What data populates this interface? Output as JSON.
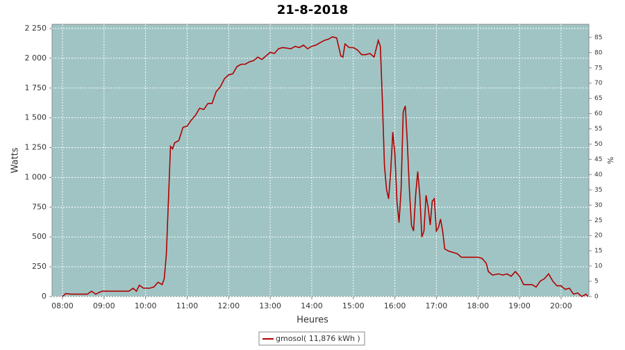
{
  "chart_data": {
    "type": "line",
    "title": "21-8-2018",
    "x_label": "Heures",
    "y_label": "Watts",
    "y2_label": "%",
    "xlim": [
      7.75,
      20.67
    ],
    "ylim": [
      0,
      2285
    ],
    "y2lim": [
      0,
      89.3
    ],
    "grid": true,
    "background": "#a0c4c4",
    "legend": "bottom",
    "xticks": [
      {
        "value": 8,
        "label": "08:00"
      },
      {
        "value": 9,
        "label": "09:00"
      },
      {
        "value": 10,
        "label": "10:00"
      },
      {
        "value": 11,
        "label": "11:00"
      },
      {
        "value": 12,
        "label": "12:00"
      },
      {
        "value": 13,
        "label": "13:00"
      },
      {
        "value": 14,
        "label": "14:00"
      },
      {
        "value": 15,
        "label": "15:00"
      },
      {
        "value": 16,
        "label": "16:00"
      },
      {
        "value": 17,
        "label": "17:00"
      },
      {
        "value": 18,
        "label": "18:00"
      },
      {
        "value": 19,
        "label": "19:00"
      },
      {
        "value": 20,
        "label": "20:00"
      }
    ],
    "yticks": [
      0,
      250,
      500,
      750,
      {
        "value": 1000,
        "label": "1 000"
      },
      {
        "value": 1250,
        "label": "1 250"
      },
      {
        "value": 1500,
        "label": "1 500"
      },
      {
        "value": 1750,
        "label": "1 750"
      },
      {
        "value": 2000,
        "label": "2 000"
      },
      {
        "value": 2250,
        "label": "2 250"
      }
    ],
    "y2ticks": [
      0,
      5,
      10,
      15,
      20,
      25,
      30,
      35,
      40,
      45,
      50,
      55,
      60,
      65,
      70,
      75,
      80,
      85
    ],
    "x": [
      8.0,
      8.08,
      8.2,
      8.4,
      8.6,
      8.7,
      8.8,
      8.95,
      9.1,
      9.3,
      9.5,
      9.6,
      9.7,
      9.78,
      9.85,
      9.95,
      10.1,
      10.2,
      10.3,
      10.4,
      10.45,
      10.5,
      10.55,
      10.6,
      10.65,
      10.7,
      10.8,
      10.9,
      11.0,
      11.1,
      11.2,
      11.3,
      11.4,
      11.5,
      11.6,
      11.7,
      11.8,
      11.9,
      12.0,
      12.1,
      12.2,
      12.3,
      12.4,
      12.5,
      12.6,
      12.7,
      12.8,
      12.9,
      13.0,
      13.1,
      13.2,
      13.3,
      13.5,
      13.6,
      13.7,
      13.8,
      13.9,
      14.0,
      14.1,
      14.2,
      14.3,
      14.4,
      14.5,
      14.6,
      14.7,
      14.75,
      14.8,
      14.9,
      15.0,
      15.1,
      15.2,
      15.3,
      15.4,
      15.5,
      15.6,
      15.65,
      15.7,
      15.75,
      15.8,
      15.85,
      15.9,
      15.95,
      16.0,
      16.05,
      16.1,
      16.15,
      16.2,
      16.25,
      16.3,
      16.35,
      16.4,
      16.45,
      16.5,
      16.55,
      16.6,
      16.65,
      16.7,
      16.75,
      16.8,
      16.85,
      16.9,
      16.95,
      17.0,
      17.05,
      17.1,
      17.15,
      17.2,
      17.3,
      17.4,
      17.5,
      17.6,
      17.8,
      18.0,
      18.1,
      18.2,
      18.25,
      18.35,
      18.5,
      18.6,
      18.7,
      18.8,
      18.9,
      19.0,
      19.1,
      19.3,
      19.4,
      19.5,
      19.6,
      19.7,
      19.8,
      19.9,
      20.0,
      20.1,
      20.2,
      20.3,
      20.4,
      20.5,
      20.6,
      20.65
    ],
    "series": [
      {
        "name": "gmosol( 11,876 kWh )",
        "color": "#b00000",
        "values": [
          0,
          25,
          20,
          20,
          20,
          45,
          20,
          45,
          45,
          45,
          45,
          45,
          70,
          45,
          95,
          70,
          70,
          80,
          120,
          100,
          150,
          350,
          800,
          1260,
          1240,
          1290,
          1310,
          1420,
          1430,
          1480,
          1520,
          1580,
          1570,
          1620,
          1620,
          1720,
          1760,
          1830,
          1860,
          1870,
          1930,
          1950,
          1950,
          1970,
          1980,
          2010,
          1990,
          2020,
          2050,
          2040,
          2080,
          2090,
          2080,
          2100,
          2090,
          2110,
          2080,
          2100,
          2110,
          2130,
          2150,
          2160,
          2180,
          2170,
          2020,
          2010,
          2120,
          2090,
          2090,
          2070,
          2030,
          2030,
          2040,
          2010,
          2150,
          2100,
          1650,
          1100,
          900,
          820,
          1050,
          1380,
          1200,
          800,
          620,
          900,
          1550,
          1600,
          1300,
          900,
          600,
          550,
          850,
          1050,
          850,
          500,
          550,
          850,
          750,
          600,
          800,
          820,
          550,
          580,
          650,
          550,
          400,
          380,
          370,
          360,
          330,
          330,
          330,
          320,
          280,
          210,
          180,
          190,
          180,
          190,
          170,
          210,
          170,
          100,
          100,
          80,
          130,
          150,
          190,
          130,
          90,
          90,
          60,
          70,
          20,
          30,
          0,
          20,
          0
        ]
      }
    ]
  }
}
